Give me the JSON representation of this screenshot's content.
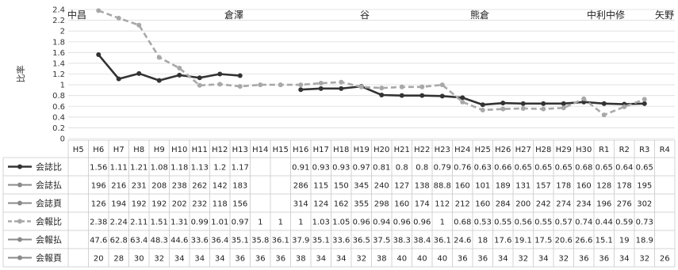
{
  "chart_data": {
    "type": "line",
    "ylabel": "比率",
    "ylim": [
      0,
      2.4
    ],
    "yticks": [
      "0",
      "0.2",
      "0.4",
      "0.6",
      "0.8",
      "1",
      "1.2",
      "1.4",
      "1.6",
      "1.8",
      "2",
      "2.2",
      "2.4"
    ],
    "categories": [
      "H5",
      "H6",
      "H7",
      "H8",
      "H9",
      "H10",
      "H11",
      "H12",
      "H13",
      "H14",
      "H15",
      "H16",
      "H17",
      "H18",
      "H19",
      "H20",
      "H21",
      "H22",
      "H23",
      "H24",
      "H25",
      "H26",
      "H27",
      "H28",
      "H29",
      "H30",
      "R1",
      "R2",
      "R3",
      "R4"
    ],
    "era_labels": [
      "中昌",
      "倉澤",
      "谷",
      "熊倉",
      "中利中修",
      "矢野"
    ],
    "grid": true,
    "legend": "table-below",
    "series": [
      {
        "name": "会誌比",
        "style": "solid-dark",
        "plotted": true,
        "values": [
          null,
          1.56,
          1.11,
          1.21,
          1.08,
          1.18,
          1.13,
          1.2,
          1.17,
          null,
          null,
          0.91,
          0.93,
          0.93,
          0.97,
          0.81,
          0.8,
          0.8,
          0.79,
          0.76,
          0.63,
          0.66,
          0.65,
          0.65,
          0.65,
          0.68,
          0.65,
          0.64,
          0.65,
          null
        ]
      },
      {
        "name": "会誌払",
        "style": "solid-grey",
        "plotted": false,
        "values": [
          null,
          196,
          216,
          231,
          208,
          238,
          262,
          142,
          183,
          null,
          null,
          286,
          115,
          150,
          345,
          240,
          127,
          138,
          88.8,
          160,
          101,
          189,
          131,
          157,
          178,
          160,
          128,
          178,
          195,
          null
        ]
      },
      {
        "name": "会誌頁",
        "style": "solid-grey",
        "plotted": false,
        "values": [
          null,
          126,
          194,
          192,
          192,
          202,
          232,
          118,
          156,
          null,
          null,
          314,
          124,
          162,
          355,
          298,
          160,
          174,
          112,
          212,
          160,
          284,
          200,
          242,
          274,
          234,
          196,
          276,
          302,
          null
        ]
      },
      {
        "name": "会報比",
        "style": "dashed-grey",
        "plotted": true,
        "values": [
          null,
          2.38,
          2.24,
          2.11,
          1.51,
          1.31,
          0.99,
          1.01,
          0.97,
          1,
          1,
          1,
          1.03,
          1.05,
          0.96,
          0.94,
          0.96,
          0.96,
          1,
          0.68,
          0.53,
          0.55,
          0.56,
          0.55,
          0.57,
          0.74,
          0.44,
          0.59,
          0.73,
          null
        ]
      },
      {
        "name": "会報払",
        "style": "solid-grey",
        "plotted": false,
        "values": [
          null,
          47.6,
          62.8,
          63.4,
          48.3,
          44.6,
          33.6,
          36.4,
          35.1,
          35.8,
          36.1,
          37.9,
          35.1,
          33.6,
          36.5,
          37.5,
          38.3,
          38.4,
          36.1,
          24.6,
          18,
          17.6,
          19.1,
          17.5,
          20.6,
          26.6,
          15.1,
          19,
          18.9,
          null
        ]
      },
      {
        "name": "会報頁",
        "style": "solid-grey",
        "plotted": false,
        "values": [
          null,
          20,
          28,
          30,
          32,
          34,
          34,
          34,
          36,
          36,
          36,
          38,
          34,
          34,
          32,
          38,
          40,
          40,
          40,
          36,
          36,
          34,
          32,
          34,
          32,
          36,
          36,
          34,
          32,
          26
        ]
      }
    ]
  }
}
